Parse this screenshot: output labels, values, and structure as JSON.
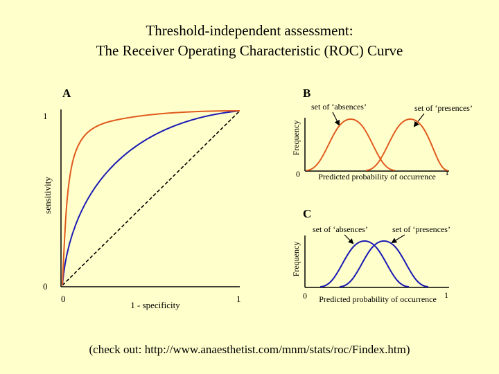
{
  "title": {
    "line1": "Threshold-independent assessment:",
    "line2": "The Receiver Operating Characteristic (ROC) Curve"
  },
  "panel_a": {
    "label": "A",
    "y_axis_label": "sensitivity",
    "x_axis_label": "1 - specificity",
    "tick_x0": "0",
    "tick_x1": "1",
    "tick_y0": "0",
    "tick_y1": "1",
    "curves": {
      "excellent_color": "#e05a1e",
      "good_color": "#1a1ab4",
      "random_line": "dashed"
    }
  },
  "panel_b": {
    "label": "B",
    "annotation_absences": "set of ‘absences’",
    "annotation_presences": "set of ‘presences’",
    "y_axis_label": "Frequency",
    "x_axis_label": "Predicted probability of occurrence",
    "tick_x0": "0",
    "tick_x1": "1",
    "curve_color": "#e05a1e"
  },
  "panel_c": {
    "label": "C",
    "annotation_absences": "set of ‘absences’",
    "annotation_presences": "set of ‘presences’",
    "y_axis_label": "Frequency",
    "x_axis_label": "Predicted probability of occurrence",
    "tick_x0": "0",
    "tick_x1": "1",
    "curve_color": "#1a1ab4"
  },
  "footer": "(check out: http://www.anaesthetist.com/mnm/stats/roc/Findex.htm)"
}
